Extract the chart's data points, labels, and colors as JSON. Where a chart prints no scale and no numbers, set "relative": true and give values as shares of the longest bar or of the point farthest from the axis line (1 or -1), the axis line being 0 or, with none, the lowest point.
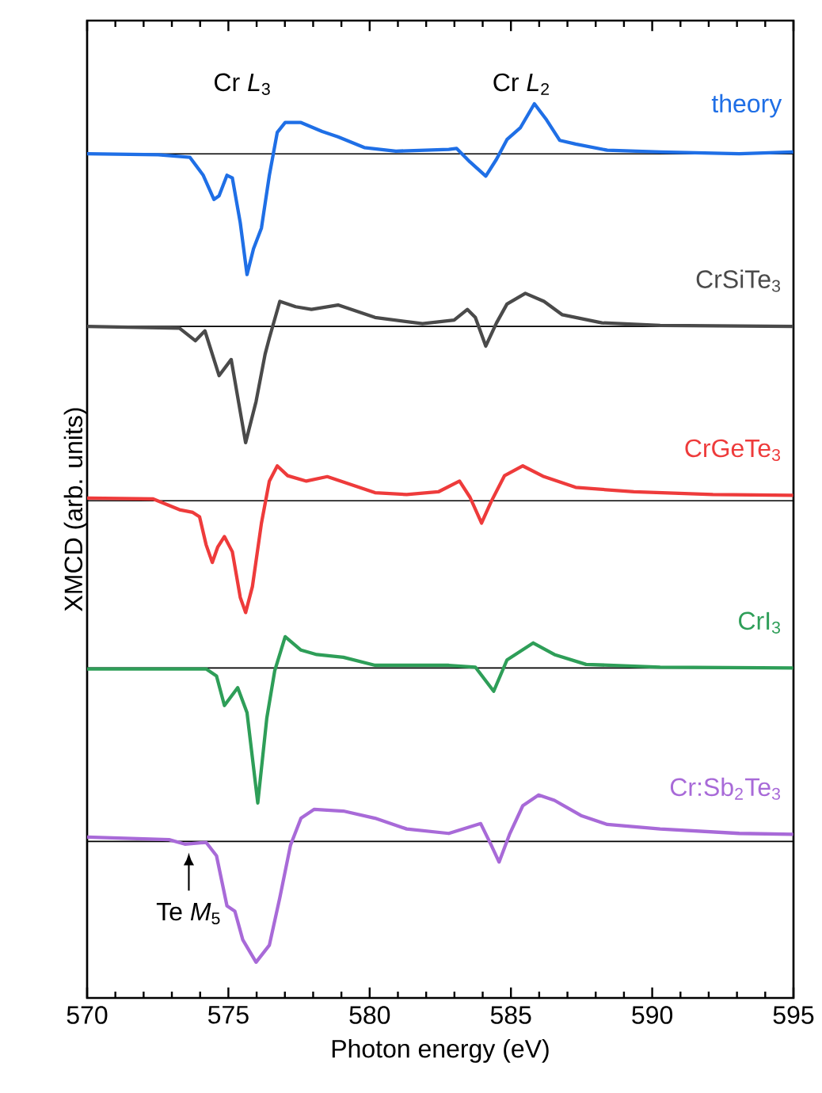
{
  "chart_data": {
    "type": "line",
    "relative": true,
    "xlabel": "Photon energy (eV)",
    "ylabel": "XMCD (arb. units)",
    "xlim": [
      570,
      595
    ],
    "xticks": [
      570,
      575,
      580,
      585,
      590,
      595
    ],
    "grid": false,
    "marker": "none",
    "line_style": "solid",
    "annotations": [
      "Cr *L*$_{3}$",
      "Cr *L*$_{2}$",
      {
        "text": "Te *M*$_{5}$",
        "x": 573.6,
        "y": 0.172
      }
    ],
    "ref_lines": [
      {
        "axis": "y",
        "value": 0.944,
        "color": "#000000"
      },
      {
        "axis": "y",
        "value": 0.751,
        "color": "#000000"
      },
      {
        "axis": "y",
        "value": 0.556,
        "color": "#000000"
      },
      {
        "axis": "y",
        "value": 0.369,
        "color": "#000000"
      },
      {
        "axis": "y",
        "value": 0.175,
        "color": "#000000"
      }
    ],
    "series": [
      {
        "name": "theory",
        "color": "#1f6fe6",
        "x": [
          570.0,
          572.52,
          573.64,
          574.11,
          574.49,
          574.67,
          574.95,
          575.14,
          575.42,
          575.66,
          575.89,
          576.17,
          576.45,
          576.73,
          577.01,
          577.57,
          578.32,
          578.88,
          579.81,
          580.93,
          582.8,
          583.08,
          583.55,
          584.11,
          584.49,
          584.86,
          585.33,
          585.83,
          586.26,
          586.73,
          587.29,
          588.41,
          590.28,
          593.08,
          594.99
        ],
        "values": [
          0.944,
          0.943,
          0.94,
          0.92,
          0.893,
          0.897,
          0.92,
          0.917,
          0.867,
          0.809,
          0.838,
          0.861,
          0.92,
          0.968,
          0.979,
          0.979,
          0.969,
          0.963,
          0.951,
          0.947,
          0.949,
          0.95,
          0.935,
          0.919,
          0.938,
          0.96,
          0.973,
          1.0,
          0.982,
          0.959,
          0.955,
          0.948,
          0.946,
          0.944,
          0.946
        ]
      },
      {
        "name": "CrSiTe$_{3}$",
        "color": "#4a4a4a",
        "x": [
          570.0,
          573.27,
          573.83,
          574.17,
          574.67,
          575.1,
          575.61,
          575.98,
          576.3,
          576.45,
          576.82,
          577.38,
          577.94,
          578.88,
          580.19,
          581.87,
          582.99,
          583.46,
          583.74,
          584.11,
          584.49,
          584.86,
          585.51,
          586.17,
          586.82,
          588.22,
          590.28,
          594.99
        ],
        "values": [
          0.751,
          0.749,
          0.735,
          0.746,
          0.696,
          0.714,
          0.621,
          0.667,
          0.72,
          0.738,
          0.779,
          0.773,
          0.77,
          0.775,
          0.761,
          0.754,
          0.758,
          0.77,
          0.761,
          0.729,
          0.755,
          0.776,
          0.788,
          0.779,
          0.764,
          0.755,
          0.752,
          0.751
        ]
      },
      {
        "name": "CrGeTe$_{3}$",
        "color": "#ee3b3b",
        "x": [
          570.0,
          572.34,
          573.27,
          573.74,
          573.98,
          574.21,
          574.43,
          574.62,
          574.86,
          575.14,
          575.42,
          575.61,
          575.85,
          576.17,
          576.45,
          576.73,
          577.1,
          577.76,
          578.5,
          579.25,
          580.19,
          581.31,
          582.43,
          583.18,
          583.55,
          583.96,
          584.3,
          584.77,
          585.42,
          586.17,
          587.29,
          589.35,
          592.15,
          594.99
        ],
        "values": [
          0.559,
          0.558,
          0.546,
          0.543,
          0.538,
          0.507,
          0.487,
          0.504,
          0.516,
          0.499,
          0.448,
          0.431,
          0.46,
          0.531,
          0.578,
          0.595,
          0.584,
          0.578,
          0.583,
          0.575,
          0.565,
          0.563,
          0.566,
          0.578,
          0.56,
          0.531,
          0.555,
          0.584,
          0.595,
          0.583,
          0.571,
          0.566,
          0.563,
          0.562
        ]
      },
      {
        "name": "CrI$_{3}$",
        "color": "#2e9e58",
        "x": [
          570.0,
          574.21,
          574.58,
          574.86,
          575.33,
          575.66,
          576.04,
          576.36,
          576.64,
          577.01,
          577.57,
          578.13,
          579.07,
          580.19,
          582.8,
          583.74,
          584.39,
          584.86,
          585.79,
          586.54,
          587.66,
          590.28,
          594.99
        ],
        "values": [
          0.368,
          0.368,
          0.36,
          0.327,
          0.347,
          0.319,
          0.218,
          0.313,
          0.366,
          0.404,
          0.389,
          0.384,
          0.381,
          0.372,
          0.372,
          0.37,
          0.343,
          0.378,
          0.397,
          0.384,
          0.373,
          0.37,
          0.369
        ]
      },
      {
        "name": "Cr:Sb$_{2}$Te$_{3}$",
        "color": "#a86ad8",
        "x": [
          570.0,
          572.9,
          573.46,
          574.21,
          574.58,
          574.95,
          575.23,
          575.51,
          575.98,
          576.45,
          576.82,
          577.2,
          577.57,
          578.04,
          579.07,
          580.19,
          581.31,
          582.8,
          583.93,
          584.3,
          584.58,
          584.95,
          585.42,
          585.98,
          586.54,
          587.48,
          588.41,
          590.28,
          593.08,
          594.99
        ],
        "values": [
          0.18,
          0.177,
          0.172,
          0.174,
          0.159,
          0.103,
          0.097,
          0.065,
          0.04,
          0.059,
          0.112,
          0.171,
          0.201,
          0.211,
          0.209,
          0.201,
          0.189,
          0.184,
          0.195,
          0.171,
          0.152,
          0.183,
          0.215,
          0.227,
          0.221,
          0.204,
          0.194,
          0.189,
          0.184,
          0.183
        ]
      }
    ]
  }
}
